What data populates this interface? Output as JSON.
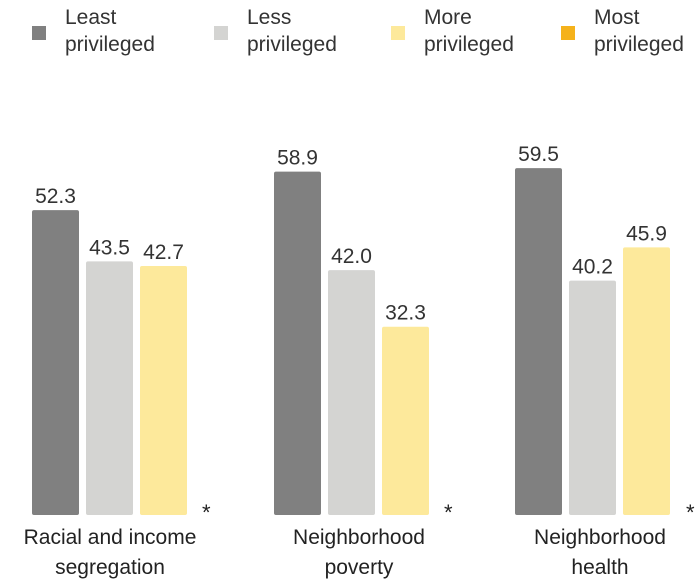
{
  "chart_data": {
    "type": "bar",
    "categories": [
      "Racial and income\nsegregation",
      "Neighborhood\npoverty",
      "Neighborhood\nhealth"
    ],
    "series": [
      {
        "name": "Least\nprivileged",
        "color": "#808080",
        "values": [
          52.3,
          58.9,
          59.5
        ]
      },
      {
        "name": "Less\nprivileged",
        "color": "#d4d4d2",
        "values": [
          43.5,
          42.0,
          40.2
        ]
      },
      {
        "name": "More\nprivileged",
        "color": "#fde99b",
        "values": [
          42.7,
          32.3,
          45.9
        ]
      },
      {
        "name": "Most\nprivileged",
        "color": "#f5b21b",
        "values": [
          null,
          null,
          null
        ]
      }
    ],
    "value_labels": [
      [
        "52.3",
        "58.9",
        "59.5"
      ],
      [
        "43.5",
        "42.0",
        "40.2"
      ],
      [
        "42.7",
        "32.3",
        "45.9"
      ]
    ],
    "annotations": [
      "*",
      "*",
      "*"
    ],
    "legend_position": "top",
    "grid": false
  }
}
